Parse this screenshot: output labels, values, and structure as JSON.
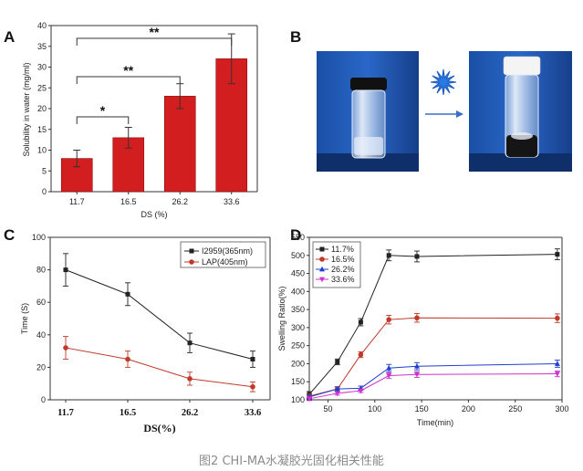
{
  "caption": "图2 CHI-MA水凝胶光固化相关性能",
  "panels": {
    "A": "A",
    "B": "B",
    "C": "C",
    "D": "D"
  },
  "colors": {
    "bar": "#d21e1e",
    "black": "#222222",
    "red": "#c0392b",
    "blue": "#1f3fd1",
    "magenta": "#cc33cc"
  },
  "chart_data": [
    {
      "panel": "A",
      "type": "bar",
      "categories": [
        "11.7",
        "16.5",
        "26.2",
        "33.6"
      ],
      "values": [
        8,
        13,
        23,
        32
      ],
      "errors": [
        2,
        2.5,
        3,
        6
      ],
      "xlabel": "DS (%)",
      "ylabel": "Solubility in water (mg/ml)",
      "ylim": [
        0,
        40
      ],
      "yticks": [
        "0",
        "5",
        "10",
        "15",
        "20",
        "25",
        "30",
        "35",
        "40"
      ],
      "annotations": [
        {
          "from": "11.7",
          "to": "16.5",
          "label": "*"
        },
        {
          "from": "11.7",
          "to": "26.2",
          "label": "**"
        },
        {
          "from": "11.7",
          "to": "33.6",
          "label": "**"
        }
      ]
    },
    {
      "panel": "C",
      "type": "line",
      "categories": [
        "11.7",
        "16.5",
        "26.2",
        "33.6"
      ],
      "xlabel": "DS(%)",
      "ylabel": "Time (S)",
      "ylim": [
        0,
        100
      ],
      "yticks": [
        "0",
        "20",
        "40",
        "60",
        "80",
        "100"
      ],
      "legend_position": "top-right",
      "series": [
        {
          "name": "I2959(365nm)",
          "values": [
            80,
            65,
            35,
            25
          ],
          "errors": [
            10,
            7,
            6,
            5
          ]
        },
        {
          "name": "LAP(405nm)",
          "values": [
            32,
            25,
            13,
            8
          ],
          "errors": [
            7,
            5,
            4,
            3
          ]
        }
      ]
    },
    {
      "panel": "D",
      "type": "line",
      "x": [
        30,
        60,
        85,
        115,
        145,
        295
      ],
      "xlabel": "Time(min)",
      "ylabel": "Swelling Ratio(%)",
      "xlim": [
        30,
        300
      ],
      "ylim": [
        100,
        550
      ],
      "xticks": [
        "50",
        "100",
        "150",
        "200",
        "250",
        "300"
      ],
      "yticks": [
        "100",
        "150",
        "200",
        "250",
        "300",
        "350",
        "400",
        "450",
        "500",
        "550"
      ],
      "legend_position": "top-left",
      "series": [
        {
          "name": "11.7%",
          "values": [
            115,
            205,
            315,
            500,
            497,
            503
          ],
          "errors": [
            8,
            8,
            10,
            15,
            15,
            15
          ]
        },
        {
          "name": "16.5%",
          "values": [
            110,
            130,
            225,
            322,
            327,
            326
          ],
          "errors": [
            6,
            6,
            8,
            12,
            12,
            12
          ]
        },
        {
          "name": "26.2%",
          "values": [
            108,
            130,
            132,
            188,
            193,
            200
          ],
          "errors": [
            6,
            6,
            6,
            10,
            10,
            10
          ]
        },
        {
          "name": "33.6%",
          "values": [
            103,
            118,
            125,
            167,
            170,
            172
          ],
          "errors": [
            5,
            5,
            5,
            8,
            8,
            8
          ]
        }
      ]
    }
  ],
  "photo": {
    "arrow": "arrow-icon",
    "light": "light-star-icon"
  }
}
